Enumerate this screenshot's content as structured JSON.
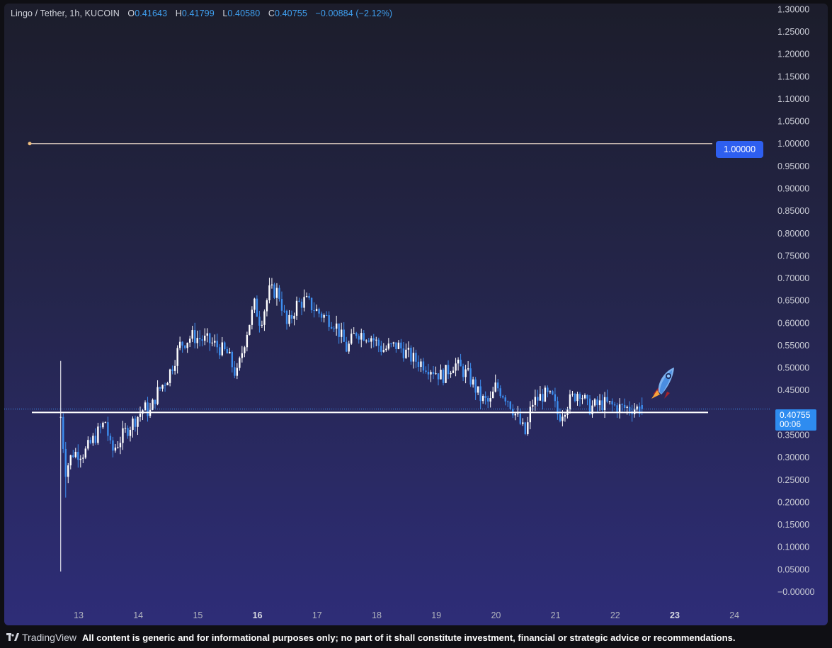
{
  "header": {
    "symbol": "Lingo / Tether, 1h, KUCOIN",
    "open_label": "O",
    "open": "0.41643",
    "high_label": "H",
    "high": "0.41799",
    "low_label": "L",
    "low": "0.40580",
    "close_label": "C",
    "close": "0.40755",
    "change": "−0.00884 (−2.12%)"
  },
  "price_axis": [
    "1.30000",
    "1.25000",
    "1.20000",
    "1.15000",
    "1.10000",
    "1.05000",
    "1.00000",
    "0.95000",
    "0.90000",
    "0.85000",
    "0.80000",
    "0.75000",
    "0.70000",
    "0.65000",
    "0.60000",
    "0.55000",
    "0.50000",
    "0.45000",
    "0.40000",
    "0.35000",
    "0.30000",
    "0.25000",
    "0.20000",
    "0.15000",
    "0.10000",
    "0.05000",
    "−0.00000"
  ],
  "time_axis": [
    {
      "label": "13",
      "bold": false
    },
    {
      "label": "14",
      "bold": false
    },
    {
      "label": "15",
      "bold": false
    },
    {
      "label": "16",
      "bold": true
    },
    {
      "label": "17",
      "bold": false
    },
    {
      "label": "18",
      "bold": false
    },
    {
      "label": "19",
      "bold": false
    },
    {
      "label": "20",
      "bold": false
    },
    {
      "label": "21",
      "bold": false
    },
    {
      "label": "22",
      "bold": false
    },
    {
      "label": "23",
      "bold": true
    },
    {
      "label": "24",
      "bold": false
    }
  ],
  "price_tag": {
    "price": "0.40755",
    "countdown": "00:06"
  },
  "level_tag": {
    "price": "1.00000"
  },
  "colors": {
    "up": "#ffffff",
    "down": "#3d8ef0",
    "level_line": "#c8b8b0",
    "support_line": "#ffffff",
    "price_tag": "#2e8cf0",
    "level_tag": "#2e5ff0"
  },
  "drawings": {
    "horizontal_ray_price": 1.0,
    "support_price": 0.4
  },
  "chart_data": {
    "type": "candlestick",
    "ylim": [
      0.0,
      1.3
    ],
    "x_unit": "day",
    "anchors": [
      [
        12.7,
        0.39
      ],
      [
        12.78,
        0.27
      ],
      [
        12.9,
        0.31
      ],
      [
        13.1,
        0.31
      ],
      [
        13.3,
        0.35
      ],
      [
        13.45,
        0.38
      ],
      [
        13.55,
        0.31
      ],
      [
        13.8,
        0.36
      ],
      [
        14.1,
        0.41
      ],
      [
        14.2,
        0.4
      ],
      [
        14.3,
        0.44
      ],
      [
        14.5,
        0.48
      ],
      [
        14.7,
        0.55
      ],
      [
        14.9,
        0.57
      ],
      [
        15.15,
        0.56
      ],
      [
        15.3,
        0.55
      ],
      [
        15.5,
        0.53
      ],
      [
        15.65,
        0.48
      ],
      [
        15.8,
        0.57
      ],
      [
        15.95,
        0.64
      ],
      [
        16.05,
        0.6
      ],
      [
        16.2,
        0.67
      ],
      [
        16.35,
        0.67
      ],
      [
        16.5,
        0.59
      ],
      [
        16.65,
        0.64
      ],
      [
        16.8,
        0.65
      ],
      [
        17.05,
        0.62
      ],
      [
        17.3,
        0.6
      ],
      [
        17.5,
        0.54
      ],
      [
        17.65,
        0.58
      ],
      [
        17.9,
        0.57
      ],
      [
        18.1,
        0.54
      ],
      [
        18.35,
        0.55
      ],
      [
        18.6,
        0.52
      ],
      [
        18.9,
        0.5
      ],
      [
        19.1,
        0.48
      ],
      [
        19.3,
        0.51
      ],
      [
        19.55,
        0.48
      ],
      [
        19.75,
        0.43
      ],
      [
        19.9,
        0.42
      ],
      [
        20.0,
        0.46
      ],
      [
        20.2,
        0.43
      ],
      [
        20.35,
        0.39
      ],
      [
        20.5,
        0.35
      ],
      [
        20.6,
        0.42
      ],
      [
        20.8,
        0.44
      ],
      [
        20.95,
        0.43
      ],
      [
        21.05,
        0.39
      ],
      [
        21.2,
        0.42
      ],
      [
        21.4,
        0.45
      ],
      [
        21.55,
        0.41
      ],
      [
        21.8,
        0.42
      ],
      [
        22.1,
        0.41
      ],
      [
        22.3,
        0.41
      ],
      [
        22.45,
        0.4076
      ]
    ],
    "candle_count": 235
  }
}
